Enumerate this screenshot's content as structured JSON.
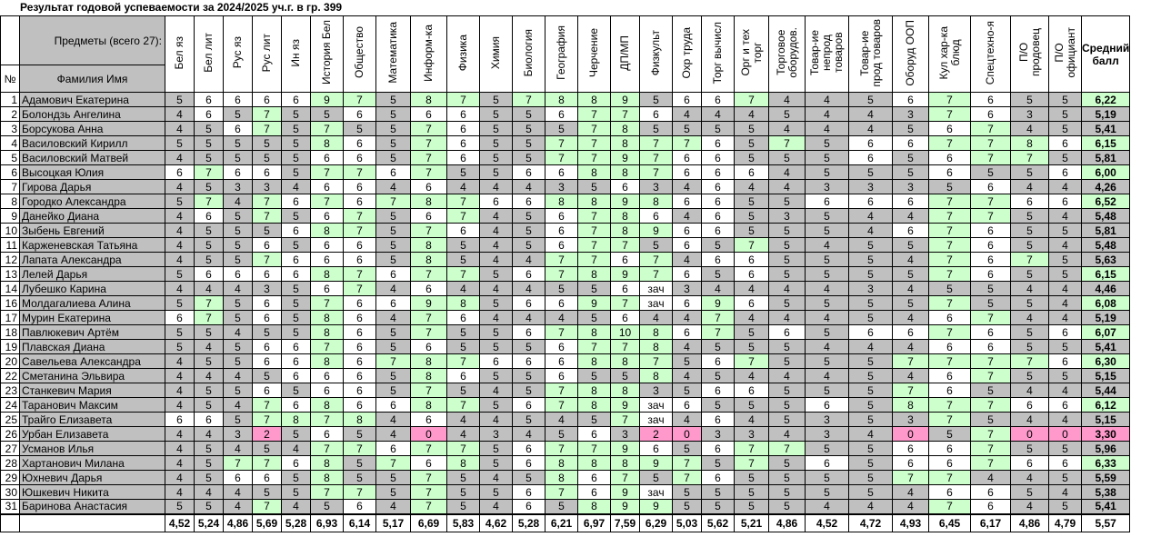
{
  "title": "Результат годовой успеваемости за 2024/2025 уч.г. в гр. 399",
  "header": {
    "subjects_label": "Предметы (всего 27):",
    "num_label": "№",
    "name_label": "Фамилия Имя",
    "average_label": "Средний балл"
  },
  "subjects": [
    "Бел яз",
    "Бел лит",
    "Рус яз",
    "Рус лит",
    "Ин яз",
    "История Бел",
    "Общество",
    "Математика",
    "Информ-ка",
    "Физика",
    "Химия",
    "Биология",
    "География",
    "Черчение",
    "ДП/МП",
    "Физкульт",
    "Охр труда",
    "Торг вычисл",
    "Орг и тех\nторг",
    "Торговое\nоборудов.",
    "Товар-ие\nнепрод\nтоваров",
    "Товар-ие\nпрод товаров",
    "Оборуд ООП",
    "Кул хар-ка\nблюд",
    "Спецтехно-я",
    "П/О\nпродовец",
    "П/О\nофициант"
  ],
  "students": [
    {
      "n": "1",
      "name": "Адамович Екатерина",
      "grades": [
        "5",
        "6",
        "6",
        "6",
        "6",
        "9",
        "7",
        "5",
        "8",
        "7",
        "5",
        "7",
        "8",
        "8",
        "9",
        "5",
        "6",
        "6",
        "7",
        "4",
        "4",
        "5",
        "6",
        "7",
        "6",
        "5",
        "5"
      ],
      "avg": "6,22"
    },
    {
      "n": "2",
      "name": "Болондзь Ангелина",
      "grades": [
        "4",
        "6",
        "5",
        "7",
        "5",
        "5",
        "6",
        "5",
        "6",
        "6",
        "5",
        "5",
        "6",
        "7",
        "7",
        "6",
        "4",
        "4",
        "4",
        "5",
        "4",
        "4",
        "3",
        "7",
        "6",
        "3",
        "5"
      ],
      "avg": "5,19"
    },
    {
      "n": "3",
      "name": "Борсукова Анна",
      "grades": [
        "4",
        "5",
        "6",
        "7",
        "5",
        "7",
        "5",
        "5",
        "7",
        "6",
        "5",
        "5",
        "5",
        "7",
        "8",
        "5",
        "5",
        "5",
        "5",
        "4",
        "4",
        "4",
        "5",
        "6",
        "7",
        "4",
        "5"
      ],
      "avg": "5,41"
    },
    {
      "n": "4",
      "name": "Василовский Кирилл",
      "grades": [
        "5",
        "5",
        "5",
        "5",
        "5",
        "8",
        "6",
        "5",
        "7",
        "6",
        "5",
        "5",
        "7",
        "7",
        "8",
        "7",
        "7",
        "6",
        "5",
        "7",
        "5",
        "6",
        "6",
        "7",
        "7",
        "8",
        "6"
      ],
      "avg": "6,15"
    },
    {
      "n": "5",
      "name": "Василовский Матвей",
      "grades": [
        "4",
        "5",
        "5",
        "5",
        "5",
        "6",
        "6",
        "5",
        "7",
        "6",
        "5",
        "5",
        "7",
        "7",
        "9",
        "7",
        "6",
        "6",
        "5",
        "5",
        "5",
        "6",
        "5",
        "6",
        "7",
        "7",
        "5"
      ],
      "avg": "5,81"
    },
    {
      "n": "6",
      "name": "Высоцкая Юлия",
      "grades": [
        "6",
        "7",
        "6",
        "6",
        "5",
        "7",
        "7",
        "6",
        "7",
        "5",
        "5",
        "6",
        "6",
        "8",
        "8",
        "7",
        "6",
        "6",
        "6",
        "4",
        "5",
        "5",
        "5",
        "6",
        "5",
        "5",
        "6"
      ],
      "avg": "6,00"
    },
    {
      "n": "7",
      "name": "Гирова Дарья",
      "grades": [
        "4",
        "5",
        "3",
        "3",
        "4",
        "6",
        "6",
        "4",
        "6",
        "4",
        "4",
        "4",
        "3",
        "5",
        "6",
        "3",
        "4",
        "6",
        "4",
        "4",
        "3",
        "3",
        "3",
        "5",
        "6",
        "4",
        "4"
      ],
      "avg": "4,26"
    },
    {
      "n": "8",
      "name": "Городко Александра",
      "grades": [
        "5",
        "7",
        "4",
        "7",
        "6",
        "7",
        "6",
        "7",
        "8",
        "7",
        "6",
        "6",
        "8",
        "8",
        "9",
        "8",
        "6",
        "6",
        "5",
        "5",
        "6",
        "6",
        "6",
        "7",
        "7",
        "6",
        "6"
      ],
      "avg": "6,52"
    },
    {
      "n": "9",
      "name": "Данейко Диана",
      "grades": [
        "4",
        "6",
        "5",
        "7",
        "5",
        "6",
        "7",
        "5",
        "6",
        "7",
        "4",
        "5",
        "6",
        "7",
        "8",
        "6",
        "4",
        "6",
        "5",
        "3",
        "5",
        "4",
        "4",
        "7",
        "7",
        "5",
        "4"
      ],
      "avg": "5,48"
    },
    {
      "n": "10",
      "name": "Зыбень Евгений",
      "grades": [
        "4",
        "5",
        "5",
        "5",
        "6",
        "8",
        "7",
        "5",
        "7",
        "6",
        "4",
        "5",
        "6",
        "7",
        "8",
        "9",
        "6",
        "6",
        "5",
        "5",
        "5",
        "4",
        "6",
        "7",
        "6",
        "5",
        "5"
      ],
      "avg": "5,81"
    },
    {
      "n": "11",
      "name": "Карженевская Татьяна",
      "grades": [
        "4",
        "5",
        "5",
        "6",
        "5",
        "6",
        "6",
        "5",
        "8",
        "5",
        "4",
        "5",
        "6",
        "7",
        "7",
        "5",
        "6",
        "5",
        "7",
        "5",
        "4",
        "5",
        "5",
        "7",
        "6",
        "5",
        "4"
      ],
      "avg": "5,48"
    },
    {
      "n": "12",
      "name": "Лапата Александра",
      "grades": [
        "4",
        "5",
        "5",
        "7",
        "6",
        "6",
        "6",
        "5",
        "8",
        "5",
        "4",
        "4",
        "7",
        "7",
        "6",
        "7",
        "4",
        "6",
        "6",
        "5",
        "5",
        "5",
        "4",
        "7",
        "6",
        "7",
        "5"
      ],
      "avg": "5,63"
    },
    {
      "n": "13",
      "name": "Лелей Дарья",
      "grades": [
        "5",
        "6",
        "6",
        "6",
        "6",
        "8",
        "7",
        "6",
        "7",
        "7",
        "5",
        "6",
        "7",
        "8",
        "9",
        "7",
        "6",
        "5",
        "6",
        "5",
        "5",
        "5",
        "5",
        "7",
        "6",
        "5",
        "5"
      ],
      "avg": "6,15"
    },
    {
      "n": "14",
      "name": "Лубешко Карина",
      "grades": [
        "4",
        "4",
        "4",
        "3",
        "5",
        "6",
        "7",
        "4",
        "6",
        "4",
        "4",
        "4",
        "5",
        "5",
        "6",
        "зач",
        "3",
        "4",
        "4",
        "4",
        "4",
        "3",
        "4",
        "5",
        "5",
        "4",
        "4"
      ],
      "avg": "4,46"
    },
    {
      "n": "16",
      "name": "Молдагалиева Алина",
      "grades": [
        "5",
        "7",
        "5",
        "6",
        "5",
        "7",
        "6",
        "6",
        "9",
        "8",
        "5",
        "6",
        "6",
        "9",
        "7",
        "зач",
        "6",
        "9",
        "6",
        "5",
        "5",
        "5",
        "5",
        "7",
        "5",
        "5",
        "4"
      ],
      "avg": "6,08"
    },
    {
      "n": "17",
      "name": "Мурин Екатерина",
      "grades": [
        "6",
        "7",
        "5",
        "6",
        "5",
        "8",
        "6",
        "4",
        "7",
        "6",
        "4",
        "4",
        "4",
        "5",
        "6",
        "4",
        "4",
        "7",
        "4",
        "4",
        "4",
        "5",
        "4",
        "6",
        "7",
        "4",
        "4"
      ],
      "avg": "5,19"
    },
    {
      "n": "18",
      "name": "Павлюкевич Артём",
      "grades": [
        "5",
        "5",
        "4",
        "5",
        "5",
        "8",
        "6",
        "5",
        "7",
        "5",
        "5",
        "6",
        "7",
        "8",
        "10",
        "8",
        "6",
        "7",
        "5",
        "6",
        "5",
        "6",
        "6",
        "7",
        "6",
        "5",
        "6"
      ],
      "avg": "6,07"
    },
    {
      "n": "19",
      "name": "Плавская Диана",
      "grades": [
        "5",
        "4",
        "5",
        "6",
        "6",
        "7",
        "6",
        "5",
        "6",
        "5",
        "5",
        "5",
        "6",
        "7",
        "7",
        "8",
        "4",
        "5",
        "5",
        "5",
        "4",
        "4",
        "4",
        "6",
        "6",
        "5",
        "5"
      ],
      "avg": "5,41"
    },
    {
      "n": "20",
      "name": "Савельева  Александра",
      "grades": [
        "4",
        "5",
        "5",
        "6",
        "6",
        "8",
        "6",
        "7",
        "8",
        "7",
        "6",
        "6",
        "6",
        "8",
        "8",
        "7",
        "5",
        "6",
        "7",
        "5",
        "5",
        "5",
        "7",
        "7",
        "7",
        "7",
        "6"
      ],
      "avg": "6,30"
    },
    {
      "n": "22",
      "name": "Сметанина Эльвира",
      "grades": [
        "4",
        "4",
        "4",
        "5",
        "6",
        "6",
        "6",
        "5",
        "8",
        "6",
        "5",
        "5",
        "6",
        "5",
        "5",
        "8",
        "4",
        "5",
        "4",
        "4",
        "4",
        "5",
        "4",
        "6",
        "7",
        "5",
        "5"
      ],
      "avg": "5,15"
    },
    {
      "n": "23",
      "name": "Станкевич Мария",
      "grades": [
        "4",
        "5",
        "5",
        "6",
        "5",
        "6",
        "6",
        "5",
        "7",
        "5",
        "4",
        "5",
        "7",
        "8",
        "8",
        "3",
        "5",
        "6",
        "6",
        "5",
        "5",
        "5",
        "7",
        "6",
        "5",
        "4",
        "4"
      ],
      "avg": "5,44"
    },
    {
      "n": "24",
      "name": "Таранович Максим",
      "grades": [
        "4",
        "5",
        "4",
        "7",
        "6",
        "8",
        "6",
        "6",
        "8",
        "7",
        "5",
        "6",
        "7",
        "8",
        "9",
        "зач",
        "6",
        "5",
        "5",
        "5",
        "6",
        "5",
        "8",
        "7",
        "7",
        "6",
        "6"
      ],
      "avg": "6,12"
    },
    {
      "n": "25",
      "name": "Трайго Елизавета",
      "grades": [
        "6",
        "6",
        "5",
        "7",
        "8",
        "7",
        "8",
        "4",
        "6",
        "4",
        "4",
        "5",
        "4",
        "5",
        "7",
        "зач",
        "4",
        "6",
        "4",
        "5",
        "3",
        "5",
        "3",
        "7",
        "5",
        "4",
        "4"
      ],
      "avg": "5,15"
    },
    {
      "n": "26",
      "name": "Урбан Елизавета",
      "grades": [
        "4",
        "4",
        "3",
        "2",
        "5",
        "6",
        "5",
        "4",
        "0",
        "4",
        "3",
        "4",
        "5",
        "6",
        "3",
        "2",
        "0",
        "3",
        "3",
        "4",
        "3",
        "4",
        "0",
        "5",
        "7",
        "0",
        "0"
      ],
      "avg": "3,30"
    },
    {
      "n": "27",
      "name": "Усманов Илья",
      "grades": [
        "4",
        "5",
        "4",
        "5",
        "4",
        "7",
        "7",
        "6",
        "7",
        "7",
        "5",
        "6",
        "7",
        "7",
        "9",
        "6",
        "5",
        "6",
        "7",
        "7",
        "5",
        "5",
        "6",
        "6",
        "7",
        "5",
        "5"
      ],
      "avg": "5,96"
    },
    {
      "n": "28",
      "name": "Хартанович Милана",
      "grades": [
        "4",
        "5",
        "7",
        "7",
        "6",
        "8",
        "5",
        "7",
        "6",
        "8",
        "5",
        "6",
        "8",
        "8",
        "8",
        "9",
        "7",
        "5",
        "7",
        "5",
        "6",
        "5",
        "6",
        "6",
        "7",
        "6",
        "6"
      ],
      "avg": "6,33"
    },
    {
      "n": "29",
      "name": "Юхневич Дарья",
      "grades": [
        "4",
        "5",
        "6",
        "6",
        "5",
        "8",
        "5",
        "5",
        "7",
        "5",
        "4",
        "5",
        "8",
        "6",
        "7",
        "5",
        "7",
        "6",
        "5",
        "5",
        "5",
        "5",
        "7",
        "7",
        "4",
        "4",
        "5"
      ],
      "avg": "5,59"
    },
    {
      "n": "30",
      "name": "Юшкевич Никита",
      "grades": [
        "4",
        "4",
        "4",
        "5",
        "5",
        "7",
        "7",
        "5",
        "7",
        "5",
        "5",
        "6",
        "7",
        "6",
        "9",
        "зач",
        "5",
        "5",
        "5",
        "5",
        "5",
        "5",
        "4",
        "6",
        "6",
        "5",
        "4"
      ],
      "avg": "5,38"
    },
    {
      "n": "31",
      "name": "Баринова Анастасия",
      "grades": [
        "5",
        "5",
        "4",
        "7",
        "4",
        "5",
        "6",
        "4",
        "7",
        "5",
        "4",
        "6",
        "5",
        "8",
        "9",
        "9",
        "5",
        "5",
        "5",
        "5",
        "4",
        "4",
        "4",
        "7",
        "6",
        "4",
        "5"
      ],
      "avg": "5,41"
    }
  ],
  "column_averages": [
    "4,52",
    "5,24",
    "4,86",
    "5,69",
    "5,28",
    "6,93",
    "6,14",
    "5,17",
    "6,69",
    "5,83",
    "4,62",
    "5,28",
    "6,21",
    "6,97",
    "7,59",
    "6,29",
    "5,03",
    "5,62",
    "5,21",
    "4,86",
    "4,52",
    "4,72",
    "4,93",
    "6,45",
    "6,17",
    "4,86",
    "4,79"
  ],
  "overall_average": "5,57",
  "cell_colors": {
    "low": "#c0c0c0",
    "mid": "#ffffff",
    "high": "#ccffcc",
    "fail": "#ff99cc"
  }
}
